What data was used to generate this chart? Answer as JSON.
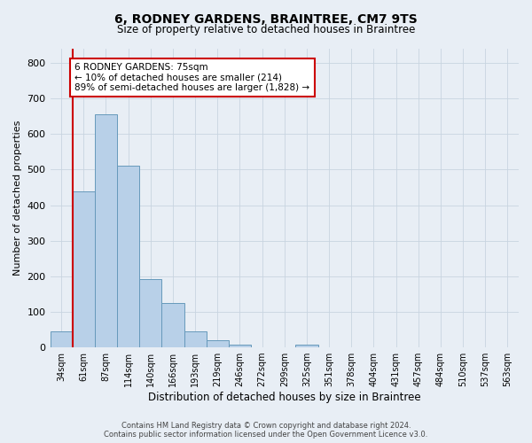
{
  "title_line1": "6, RODNEY GARDENS, BRAINTREE, CM7 9TS",
  "title_line2": "Size of property relative to detached houses in Braintree",
  "xlabel": "Distribution of detached houses by size in Braintree",
  "ylabel": "Number of detached properties",
  "categories": [
    "34sqm",
    "61sqm",
    "87sqm",
    "114sqm",
    "140sqm",
    "166sqm",
    "193sqm",
    "219sqm",
    "246sqm",
    "272sqm",
    "299sqm",
    "325sqm",
    "351sqm",
    "378sqm",
    "404sqm",
    "431sqm",
    "457sqm",
    "484sqm",
    "510sqm",
    "537sqm",
    "563sqm"
  ],
  "bar_heights": [
    45,
    440,
    655,
    510,
    193,
    125,
    45,
    20,
    8,
    0,
    0,
    7,
    0,
    0,
    0,
    0,
    0,
    0,
    0,
    0,
    0
  ],
  "bar_color": "#b8d0e8",
  "bar_edge_color": "#6699bb",
  "grid_color": "#c8d4e0",
  "vline_x": 1,
  "vline_color": "#cc0000",
  "annotation_text": "6 RODNEY GARDENS: 75sqm\n← 10% of detached houses are smaller (214)\n89% of semi-detached houses are larger (1,828) →",
  "annotation_box_color": "#ffffff",
  "annotation_box_edge": "#cc0000",
  "ylim": [
    0,
    840
  ],
  "yticks": [
    0,
    100,
    200,
    300,
    400,
    500,
    600,
    700,
    800
  ],
  "footer_line1": "Contains HM Land Registry data © Crown copyright and database right 2024.",
  "footer_line2": "Contains public sector information licensed under the Open Government Licence v3.0.",
  "bg_color": "#e8eef5"
}
